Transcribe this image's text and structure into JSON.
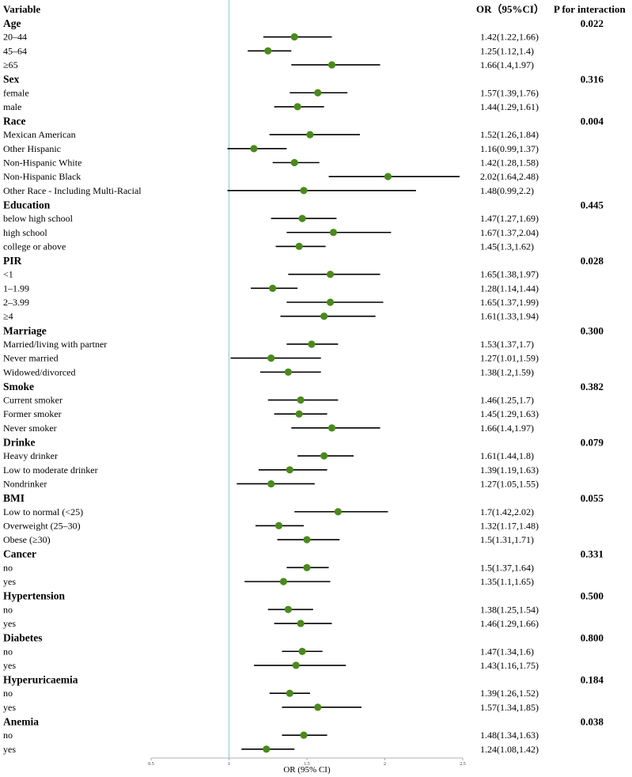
{
  "headers": {
    "variable": "Variable",
    "or": "OR（95%CI）",
    "p": "P for interaction"
  },
  "colors": {
    "marker": "#4a8a1c",
    "refline": "#8fc6d1",
    "ci": "#000000"
  },
  "chart_data": {
    "type": "forest",
    "xlabel": "OR (95% CI)",
    "xlim": [
      0.5,
      2.5
    ],
    "xticks": [
      "0.5",
      "1",
      "1.5",
      "2",
      "2.5"
    ],
    "reference_line": 1,
    "groups": [
      {
        "name": "Age",
        "p": "0.022",
        "rows": [
          {
            "label": "20–44",
            "or": 1.42,
            "lo": 1.22,
            "hi": 1.66,
            "text": "1.42(1.22,1.66)"
          },
          {
            "label": "45–64",
            "or": 1.25,
            "lo": 1.12,
            "hi": 1.4,
            "text": "1.25(1.12,1.4)"
          },
          {
            "label": "≥65",
            "or": 1.66,
            "lo": 1.4,
            "hi": 1.97,
            "text": "1.66(1.4,1.97)"
          }
        ]
      },
      {
        "name": "Sex",
        "p": "0.316",
        "rows": [
          {
            "label": "female",
            "or": 1.57,
            "lo": 1.39,
            "hi": 1.76,
            "text": "1.57(1.39,1.76)"
          },
          {
            "label": "male",
            "or": 1.44,
            "lo": 1.29,
            "hi": 1.61,
            "text": "1.44(1.29,1.61)"
          }
        ]
      },
      {
        "name": "Race",
        "p": "0.004",
        "rows": [
          {
            "label": "Mexican American",
            "or": 1.52,
            "lo": 1.26,
            "hi": 1.84,
            "text": "1.52(1.26,1.84)"
          },
          {
            "label": "Other Hispanic",
            "or": 1.16,
            "lo": 0.99,
            "hi": 1.37,
            "text": "1.16(0.99,1.37)"
          },
          {
            "label": "Non-Hispanic White",
            "or": 1.42,
            "lo": 1.28,
            "hi": 1.58,
            "text": "1.42(1.28,1.58)"
          },
          {
            "label": "Non-Hispanic Black",
            "or": 2.02,
            "lo": 1.64,
            "hi": 2.48,
            "text": "2.02(1.64,2.48)"
          },
          {
            "label": "Other Race - Including Multi-Racial",
            "or": 1.48,
            "lo": 0.99,
            "hi": 2.2,
            "text": "1.48(0.99,2.2)"
          }
        ]
      },
      {
        "name": "Education",
        "p": "0.445",
        "rows": [
          {
            "label": "below high school",
            "or": 1.47,
            "lo": 1.27,
            "hi": 1.69,
            "text": "1.47(1.27,1.69)"
          },
          {
            "label": "high school",
            "or": 1.67,
            "lo": 1.37,
            "hi": 2.04,
            "text": "1.67(1.37,2.04)"
          },
          {
            "label": "college or above",
            "or": 1.45,
            "lo": 1.3,
            "hi": 1.62,
            "text": "1.45(1.3,1.62)"
          }
        ]
      },
      {
        "name": "PIR",
        "p": "0.028",
        "rows": [
          {
            "label": "<1",
            "or": 1.65,
            "lo": 1.38,
            "hi": 1.97,
            "text": "1.65(1.38,1.97)"
          },
          {
            "label": "1–1.99",
            "or": 1.28,
            "lo": 1.14,
            "hi": 1.44,
            "text": "1.28(1.14,1.44)"
          },
          {
            "label": "2–3.99",
            "or": 1.65,
            "lo": 1.37,
            "hi": 1.99,
            "text": "1.65(1.37,1.99)"
          },
          {
            "label": "≥4",
            "or": 1.61,
            "lo": 1.33,
            "hi": 1.94,
            "text": "1.61(1.33,1.94)"
          }
        ]
      },
      {
        "name": "Marriage",
        "p": "0.300",
        "rows": [
          {
            "label": "Married/living with partner",
            "or": 1.53,
            "lo": 1.37,
            "hi": 1.7,
            "text": "1.53(1.37,1.7)"
          },
          {
            "label": "Never married",
            "or": 1.27,
            "lo": 1.01,
            "hi": 1.59,
            "text": "1.27(1.01,1.59)"
          },
          {
            "label": "Widowed/divorced",
            "or": 1.38,
            "lo": 1.2,
            "hi": 1.59,
            "text": "1.38(1.2,1.59)"
          }
        ]
      },
      {
        "name": "Smoke",
        "p": "0.382",
        "rows": [
          {
            "label": "Current smoker",
            "or": 1.46,
            "lo": 1.25,
            "hi": 1.7,
            "text": "1.46(1.25,1.7)"
          },
          {
            "label": "Former smoker",
            "or": 1.45,
            "lo": 1.29,
            "hi": 1.63,
            "text": "1.45(1.29,1.63)"
          },
          {
            "label": "Never smoker",
            "or": 1.66,
            "lo": 1.4,
            "hi": 1.97,
            "text": "1.66(1.4,1.97)"
          }
        ]
      },
      {
        "name": "Drinke",
        "p": "0.079",
        "rows": [
          {
            "label": "Heavy drinker",
            "or": 1.61,
            "lo": 1.44,
            "hi": 1.8,
            "text": "1.61(1.44,1.8)"
          },
          {
            "label": "Low to moderate drinker",
            "or": 1.39,
            "lo": 1.19,
            "hi": 1.63,
            "text": "1.39(1.19,1.63)"
          },
          {
            "label": "Nondrinker",
            "or": 1.27,
            "lo": 1.05,
            "hi": 1.55,
            "text": "1.27(1.05,1.55)"
          }
        ]
      },
      {
        "name": "BMI",
        "p": "0.055",
        "rows": [
          {
            "label": "Low to normal (<25)",
            "or": 1.7,
            "lo": 1.42,
            "hi": 2.02,
            "text": "1.7(1.42,2.02)"
          },
          {
            "label": "Overweight (25–30)",
            "or": 1.32,
            "lo": 1.17,
            "hi": 1.48,
            "text": "1.32(1.17,1.48)"
          },
          {
            "label": "Obese (≥30)",
            "or": 1.5,
            "lo": 1.31,
            "hi": 1.71,
            "text": "1.5(1.31,1.71)"
          }
        ]
      },
      {
        "name": "Cancer",
        "p": "0.331",
        "rows": [
          {
            "label": "no",
            "or": 1.5,
            "lo": 1.37,
            "hi": 1.64,
            "text": "1.5(1.37,1.64)"
          },
          {
            "label": "yes",
            "or": 1.35,
            "lo": 1.1,
            "hi": 1.65,
            "text": "1.35(1.1,1.65)"
          }
        ]
      },
      {
        "name": "Hypertension",
        "p": "0.500",
        "rows": [
          {
            "label": "no",
            "or": 1.38,
            "lo": 1.25,
            "hi": 1.54,
            "text": "1.38(1.25,1.54)"
          },
          {
            "label": "yes",
            "or": 1.46,
            "lo": 1.29,
            "hi": 1.66,
            "text": "1.46(1.29,1.66)"
          }
        ]
      },
      {
        "name": "Diabetes",
        "p": "0.800",
        "rows": [
          {
            "label": "no",
            "or": 1.47,
            "lo": 1.34,
            "hi": 1.6,
            "text": "1.47(1.34,1.6)"
          },
          {
            "label": "yes",
            "or": 1.43,
            "lo": 1.16,
            "hi": 1.75,
            "text": "1.43(1.16,1.75)"
          }
        ]
      },
      {
        "name": "Hyperuricaemia",
        "p": "0.184",
        "rows": [
          {
            "label": "no",
            "or": 1.39,
            "lo": 1.26,
            "hi": 1.52,
            "text": "1.39(1.26,1.52)"
          },
          {
            "label": "yes",
            "or": 1.57,
            "lo": 1.34,
            "hi": 1.85,
            "text": "1.57(1.34,1.85)"
          }
        ]
      },
      {
        "name": "Anemia",
        "p": "0.038",
        "rows": [
          {
            "label": "no",
            "or": 1.48,
            "lo": 1.34,
            "hi": 1.63,
            "text": "1.48(1.34,1.63)"
          },
          {
            "label": "yes",
            "or": 1.24,
            "lo": 1.08,
            "hi": 1.42,
            "text": "1.24(1.08,1.42)"
          }
        ]
      }
    ]
  }
}
